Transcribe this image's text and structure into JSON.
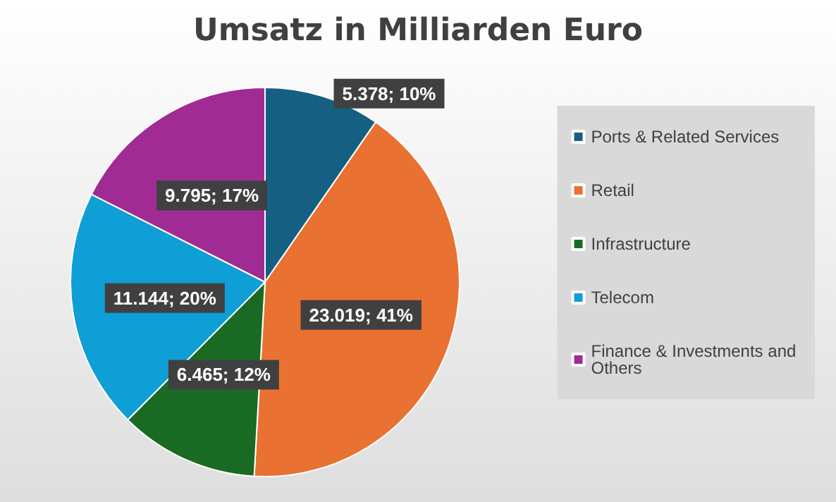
{
  "chart_data": {
    "type": "pie",
    "title": "Umsatz in Milliarden Euro",
    "categories": [
      "Ports & Related Services",
      "Retail",
      "Infrastructure",
      "Telecom",
      "Finance & Investments and Others"
    ],
    "values": [
      5.378,
      23.019,
      6.465,
      11.144,
      9.795
    ],
    "colors": [
      "#156082",
      "#e97132",
      "#196b24",
      "#0f9ed5",
      "#a02b93"
    ],
    "value_labels": [
      "5.378; 10%",
      "23.019; 41%",
      "6.465; 12%",
      "11.144; 20%",
      "9.795; 17%"
    ],
    "legend": "right"
  }
}
